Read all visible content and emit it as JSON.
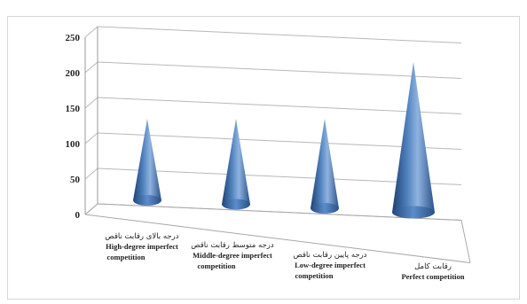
{
  "chart_data": {
    "type": "bar",
    "style": "3d-cone",
    "categories": [
      {
        "fa": "درجه بالای رقابت ناقص",
        "en_line1": "High-degree imperfect",
        "en_line2": "competition"
      },
      {
        "fa": "درجه متوسط رقابت ناقص",
        "en_line1": "Middle-degree imperfect",
        "en_line2": "competition"
      },
      {
        "fa": "درجه پایین رقابت ناقص",
        "en_line1": "Low-degree imperfect",
        "en_line2": "competition"
      },
      {
        "fa": "رقابت کامل",
        "en_line1": "Perfect competition",
        "en_line2": ""
      }
    ],
    "values": [
      130,
      130,
      130,
      210
    ],
    "yticks": [
      "0",
      "50",
      "100",
      "150",
      "200",
      "250"
    ],
    "ylim": [
      0,
      250
    ],
    "grid": true,
    "cone_color": "#4f81bd"
  }
}
